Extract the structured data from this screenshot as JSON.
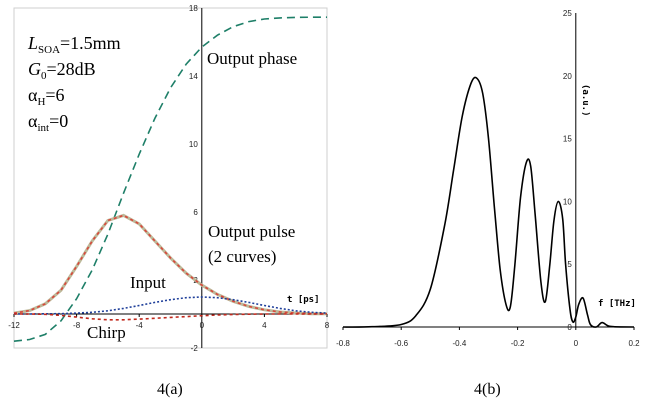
{
  "chart_data": [
    {
      "type": "line",
      "xlim": [
        -12,
        8
      ],
      "ylim": [
        -2,
        18
      ],
      "x_ticks": [
        "-12",
        "-8",
        "-4",
        "0",
        "4",
        "8"
      ],
      "y_ticks": [
        "18",
        "14",
        "10",
        "6",
        "2",
        "-2"
      ],
      "xlabel": "t [ps]",
      "parameters": {
        "l_soa": {
          "symbol": "L",
          "sub": "SOA",
          "value": "=1.5mm"
        },
        "g0": {
          "symbol": "G",
          "sub": "0",
          "value": "=28dB"
        },
        "alpha_h": {
          "symbol": "α",
          "sub": "H",
          "value": "=6"
        },
        "alpha_int": {
          "symbol": "α",
          "sub": "int",
          "value": "=0"
        }
      },
      "annotations": {
        "output_phase": "Output phase",
        "output_pulse_1": "Output pulse",
        "output_pulse_2": "(2 curves)",
        "input": "Input",
        "chirp": "Chirp"
      },
      "series": [
        {
          "key": "output_phase",
          "color": "#1e7f68",
          "dash": "8,5",
          "x": [
            -12,
            -11,
            -10,
            -9,
            -8,
            -7,
            -6,
            -5,
            -4,
            -3,
            -2,
            -1,
            0,
            1,
            2,
            3,
            4,
            5,
            6,
            7,
            8
          ],
          "y": [
            -1.6,
            -1.5,
            -1.2,
            -0.4,
            0.9,
            2.6,
            4.7,
            7.1,
            9.4,
            11.5,
            13.3,
            14.7,
            15.7,
            16.4,
            16.9,
            17.2,
            17.35,
            17.42,
            17.45,
            17.46,
            17.46
          ]
        },
        {
          "key": "output_pulse_a",
          "color": "#bdb99a",
          "dash": "",
          "x": [
            -12,
            -11,
            -10,
            -9,
            -8,
            -7,
            -6,
            -5,
            -4,
            -3,
            -2,
            -1,
            0,
            1,
            2,
            3,
            4,
            5,
            6,
            7,
            8
          ],
          "y": [
            0.05,
            0.2,
            0.6,
            1.4,
            2.8,
            4.3,
            5.5,
            5.8,
            5.3,
            4.3,
            3.3,
            2.4,
            1.7,
            1.15,
            0.75,
            0.45,
            0.25,
            0.12,
            0.06,
            0.02,
            0.01
          ]
        },
        {
          "key": "output_pulse_b",
          "color": "#d9463a",
          "dash": "3,3",
          "x": [
            -12,
            -11,
            -10,
            -9,
            -8,
            -7,
            -6,
            -5,
            -4,
            -3,
            -2,
            -1,
            0,
            1,
            2,
            3,
            4,
            5,
            6,
            7,
            8
          ],
          "y": [
            0.05,
            0.2,
            0.6,
            1.4,
            2.8,
            4.3,
            5.5,
            5.8,
            5.3,
            4.3,
            3.3,
            2.4,
            1.7,
            1.15,
            0.75,
            0.45,
            0.25,
            0.12,
            0.06,
            0.02,
            0.01
          ]
        },
        {
          "key": "input",
          "color": "#1f3f9a",
          "dash": "2,2",
          "x": [
            -12,
            -11,
            -10,
            -9,
            -8,
            -7,
            -6,
            -5,
            -4,
            -3,
            -2,
            -1,
            0,
            1,
            2,
            3,
            4,
            5,
            6,
            7,
            8
          ],
          "y": [
            0.0,
            0.0,
            0.01,
            0.02,
            0.05,
            0.1,
            0.19,
            0.33,
            0.5,
            0.68,
            0.84,
            0.96,
            1.0,
            0.96,
            0.84,
            0.68,
            0.5,
            0.33,
            0.19,
            0.1,
            0.05
          ]
        },
        {
          "key": "chirp",
          "color": "#c0281c",
          "dash": "3,3",
          "x": [
            -12,
            -11,
            -10,
            -9,
            -8,
            -7,
            -6,
            -5,
            -4,
            -3,
            -2,
            -1,
            0,
            1,
            2,
            3,
            4,
            5,
            6,
            7,
            8
          ],
          "y": [
            0.0,
            0.0,
            -0.02,
            -0.08,
            -0.18,
            -0.28,
            -0.34,
            -0.34,
            -0.3,
            -0.25,
            -0.2,
            -0.15,
            -0.1,
            -0.06,
            -0.03,
            -0.01,
            0.0,
            0.0,
            0.0,
            0.0,
            0.0
          ]
        }
      ],
      "caption": "4(a)"
    },
    {
      "type": "line",
      "xlim": [
        -0.8,
        0.2
      ],
      "ylim": [
        0,
        25
      ],
      "x_ticks": [
        "-0.8",
        "-0.6",
        "-0.4",
        "-0.2",
        "0",
        "0.2"
      ],
      "y_ticks": [
        "25",
        "20",
        "15",
        "10",
        "5",
        "0"
      ],
      "xlabel": "f [THz]",
      "ylabel": "(a.u.)",
      "series": [
        {
          "key": "spectrum",
          "color": "#000000",
          "x": [
            -0.8,
            -0.7,
            -0.6,
            -0.55,
            -0.5,
            -0.45,
            -0.42,
            -0.39,
            -0.36,
            -0.34,
            -0.32,
            -0.3,
            -0.28,
            -0.26,
            -0.24,
            -0.225,
            -0.21,
            -0.19,
            -0.17,
            -0.155,
            -0.14,
            -0.12,
            -0.105,
            -0.09,
            -0.075,
            -0.06,
            -0.045,
            -0.035,
            -0.02,
            -0.01,
            0.0,
            0.01,
            0.025,
            0.04,
            0.05,
            0.07,
            0.09,
            0.11,
            0.13,
            0.2
          ],
          "y": [
            0.0,
            0.02,
            0.2,
            0.9,
            3.0,
            8.2,
            12.5,
            16.8,
            19.4,
            19.8,
            18.6,
            15.0,
            9.6,
            4.6,
            1.8,
            1.6,
            4.8,
            10.3,
            13.1,
            12.8,
            9.0,
            3.6,
            2.0,
            4.8,
            8.5,
            10.0,
            8.6,
            5.0,
            1.4,
            0.4,
            0.8,
            1.8,
            2.3,
            1.0,
            0.2,
            0.0,
            0.35,
            0.1,
            0.02,
            0.0
          ]
        }
      ],
      "caption": "4(b)"
    }
  ]
}
